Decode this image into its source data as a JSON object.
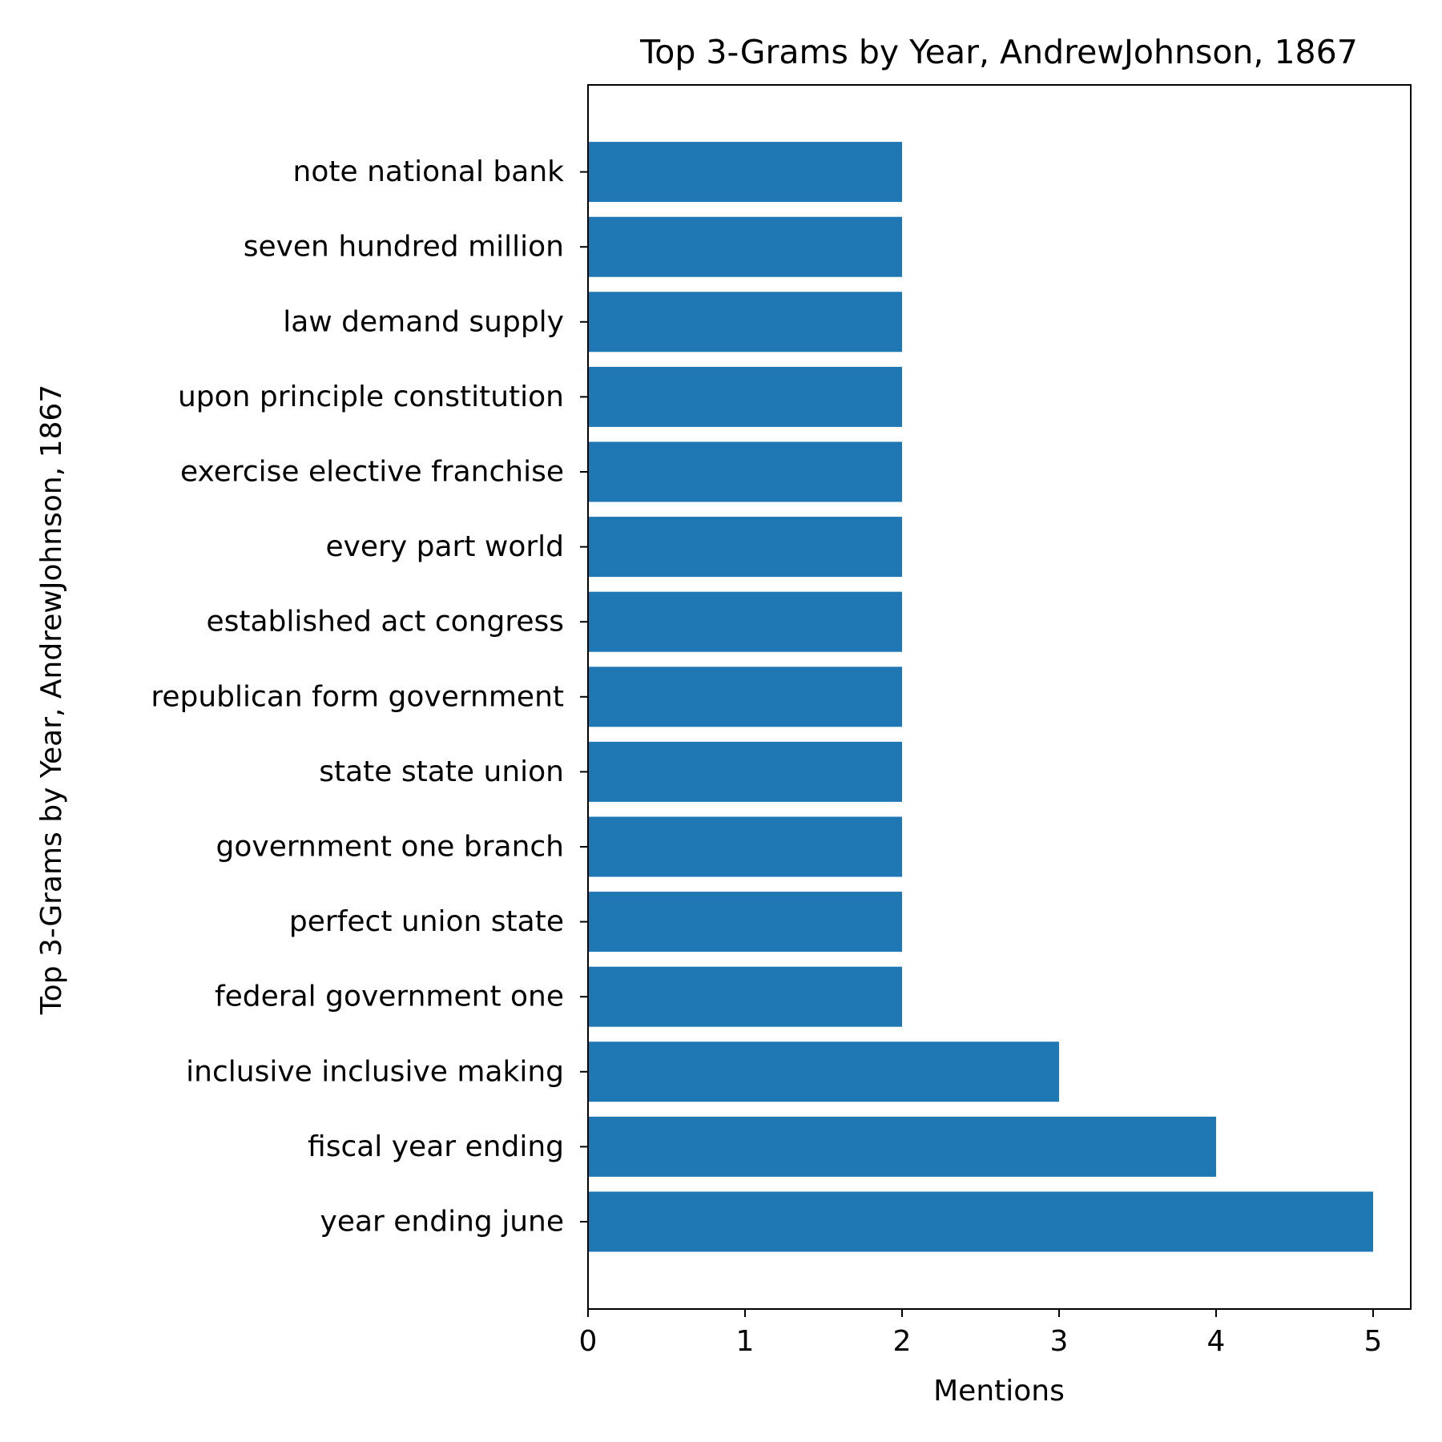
{
  "chart_data": {
    "type": "bar",
    "orientation": "horizontal",
    "title": "Top 3-Grams by Year, AndrewJohnson, 1867",
    "xlabel": "Mentions",
    "ylabel": "Top 3-Grams by Year, AndrewJohnson, 1867",
    "categories": [
      "year ending june",
      "fiscal year ending",
      "inclusive inclusive making",
      "federal government one",
      "perfect union state",
      "government one branch",
      "state state union",
      "republican form government",
      "established act congress",
      "every part world",
      "exercise elective franchise",
      "upon principle constitution",
      "law demand supply",
      "seven hundred million",
      "note national bank"
    ],
    "values": [
      5,
      4,
      3,
      2,
      2,
      2,
      2,
      2,
      2,
      2,
      2,
      2,
      2,
      2,
      2
    ],
    "xlim": [
      0,
      5.25
    ],
    "xticks": [
      0,
      1,
      2,
      3,
      4,
      5
    ],
    "bar_color": "#1f77b4",
    "grid": false,
    "legend": "none"
  }
}
